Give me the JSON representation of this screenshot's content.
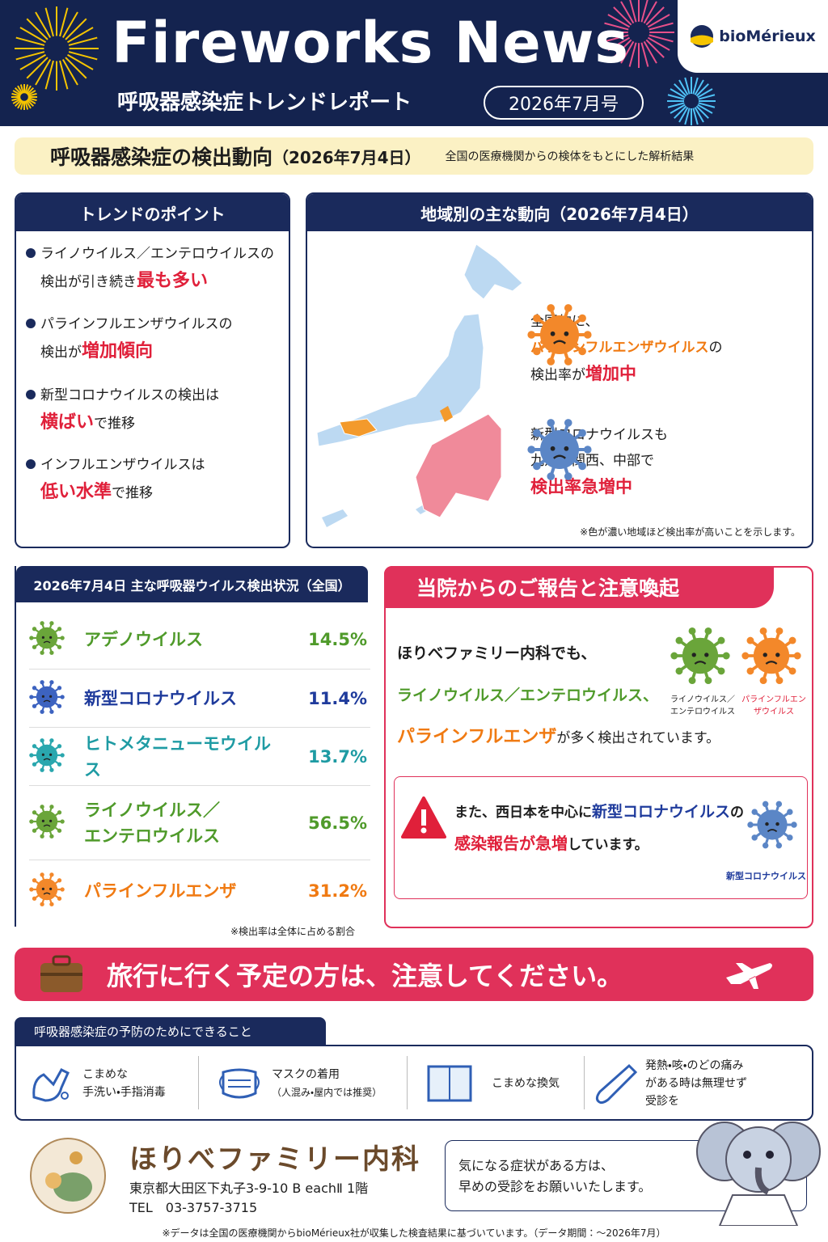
{
  "header": {
    "title": "Fireworks News",
    "subtitle": "呼吸器感染症トレンドレポート",
    "issue": "2026年7月号",
    "brand": "bioMérieux"
  },
  "banner": {
    "title": "呼吸器感染症の検出動向",
    "date": "（2026年7月4日）",
    "note": "全国の医療機関からの検体をもとにした解析結果"
  },
  "trend_points": {
    "title": "トレンドのポイント",
    "items": [
      [
        "ライノウイルス／エンテロウイルスの",
        "検出が引き続き",
        "最も多い"
      ],
      [
        "パラインフルエンザウイルスの",
        "検出が",
        "増加傾向"
      ],
      [
        "新型コロナウイルスの検出は",
        "横ばい",
        "で推移"
      ],
      [
        "インフルエンザウイルスは",
        "低い水準",
        "で推移"
      ]
    ]
  },
  "regional": {
    "title": "地域別の主な動向（2026年7月4日）",
    "callouts": [
      [
        "全国的に、",
        "パラインフルエンザウイルス",
        "の",
        "検出率が",
        "増加中"
      ],
      [
        "新型コロナウイルスも",
        "九州、関西、中部で",
        "検出率急増中"
      ]
    ],
    "note": "※色が濃い地域ほど検出率が高いことを示します。"
  },
  "detection": {
    "title": "2026年7月4日 主な呼吸器ウイルス検出状況（全国）",
    "rows": [
      {
        "name": "アデノウイルス",
        "rate": "14.5%"
      },
      {
        "name": "新型コロナウイルス",
        "rate": "11.4%"
      },
      {
        "name": "ヒトメタニューモウイルス",
        "rate": "13.7%"
      },
      {
        "name": "ライノウイルス／エンテロウイルス",
        "rate": "56.5%"
      },
      {
        "name": "パラインフルエンザ",
        "rate": "31.2%"
      }
    ],
    "note": "※検出率は全体に占める割合"
  },
  "clinic_report": {
    "title": "当院からのご報告と注意喚起",
    "message": [
      "ほりべファミリー内科でも、",
      "ライノウイルス／エンテロウイルス、",
      "パラインフルエンザ",
      "が多く検出されています。"
    ],
    "virus_labels": [
      "ライノウイルス／エンテロウイルス",
      "パラインフルエンザウイルス"
    ],
    "alert": [
      "また、西日本を中心に",
      "新型コロナウイルス",
      "の",
      "感染報告が急増",
      "しています。"
    ],
    "alert_label": "新型コロナウイルス"
  },
  "travel": "旅行に行く予定の方は、注意してください。",
  "prevention": {
    "title": "呼吸器感染症の予防のためにできること",
    "items": [
      [
        "こまめな",
        "手洗い・手指消毒"
      ],
      [
        "マスクの着用",
        "（人混み・屋内では推奨）"
      ],
      [
        "こまめな換気"
      ],
      [
        "発熱・咳・のどの痛み",
        "がある時は無理せず",
        "受診を"
      ]
    ]
  },
  "clinic": {
    "name": "ほりべファミリー内科",
    "address": "東京都大田区下丸子3-9-10 B eachⅡ 1階",
    "tel": "TEL　03-3757-3715",
    "message": [
      "気になる症状がある方は、",
      "早めの受診をお願いいたします。"
    ]
  },
  "footer": "※データは全国の医療機関からbioMérieux社が収集した検査結果に基づいています。（データ期間：～2026年7月）"
}
